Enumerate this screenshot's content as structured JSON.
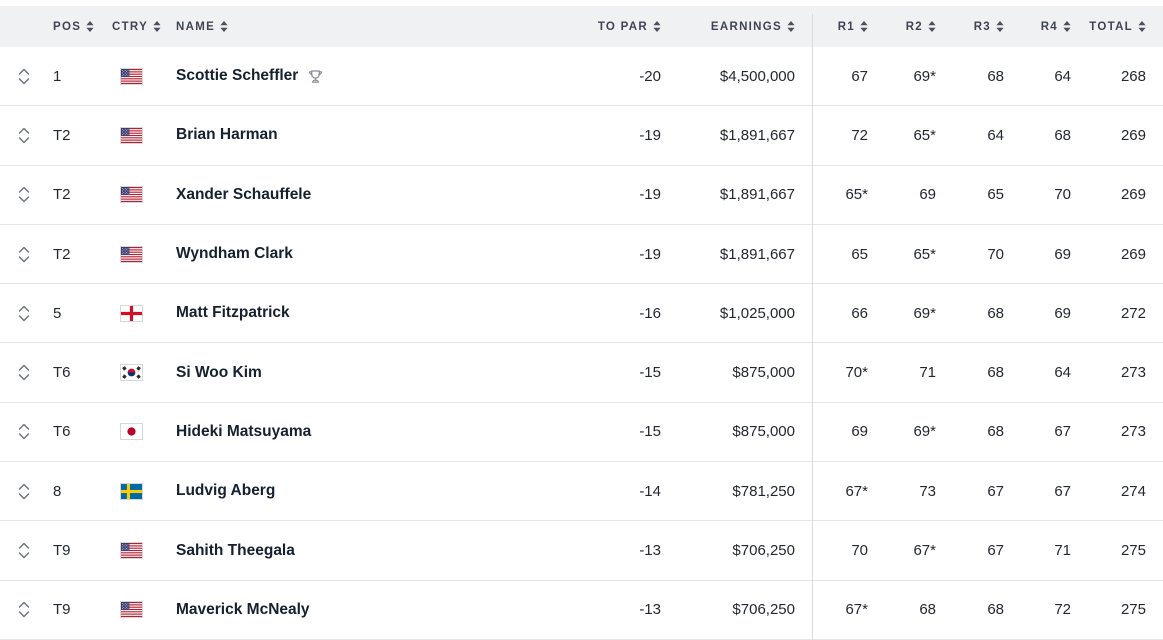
{
  "table": {
    "columns": [
      {
        "key": "pos",
        "label": "POS"
      },
      {
        "key": "country",
        "label": "CTRY"
      },
      {
        "key": "name",
        "label": "NAME"
      },
      {
        "key": "to_par",
        "label": "TO PAR"
      },
      {
        "key": "earnings",
        "label": "EARNINGS"
      },
      {
        "key": "r1",
        "label": "R1"
      },
      {
        "key": "r2",
        "label": "R2"
      },
      {
        "key": "r3",
        "label": "R3"
      },
      {
        "key": "r4",
        "label": "R4"
      },
      {
        "key": "total",
        "label": "TOTAL"
      }
    ],
    "rows": [
      {
        "pos": "1",
        "country": "USA",
        "name": "Scottie Scheffler",
        "winner": true,
        "to_par": "-20",
        "earnings": "$4,500,000",
        "r1": "67",
        "r2": "69*",
        "r3": "68",
        "r4": "64",
        "total": "268"
      },
      {
        "pos": "T2",
        "country": "USA",
        "name": "Brian Harman",
        "winner": false,
        "to_par": "-19",
        "earnings": "$1,891,667",
        "r1": "72",
        "r2": "65*",
        "r3": "64",
        "r4": "68",
        "total": "269"
      },
      {
        "pos": "T2",
        "country": "USA",
        "name": "Xander Schauffele",
        "winner": false,
        "to_par": "-19",
        "earnings": "$1,891,667",
        "r1": "65*",
        "r2": "69",
        "r3": "65",
        "r4": "70",
        "total": "269"
      },
      {
        "pos": "T2",
        "country": "USA",
        "name": "Wyndham Clark",
        "winner": false,
        "to_par": "-19",
        "earnings": "$1,891,667",
        "r1": "65",
        "r2": "65*",
        "r3": "70",
        "r4": "69",
        "total": "269"
      },
      {
        "pos": "5",
        "country": "ENG",
        "name": "Matt Fitzpatrick",
        "winner": false,
        "to_par": "-16",
        "earnings": "$1,025,000",
        "r1": "66",
        "r2": "69*",
        "r3": "68",
        "r4": "69",
        "total": "272"
      },
      {
        "pos": "T6",
        "country": "KOR",
        "name": "Si Woo Kim",
        "winner": false,
        "to_par": "-15",
        "earnings": "$875,000",
        "r1": "70*",
        "r2": "71",
        "r3": "68",
        "r4": "64",
        "total": "273"
      },
      {
        "pos": "T6",
        "country": "JPN",
        "name": "Hideki Matsuyama",
        "winner": false,
        "to_par": "-15",
        "earnings": "$875,000",
        "r1": "69",
        "r2": "69*",
        "r3": "68",
        "r4": "67",
        "total": "273"
      },
      {
        "pos": "8",
        "country": "SWE",
        "name": "Ludvig Aberg",
        "winner": false,
        "to_par": "-14",
        "earnings": "$781,250",
        "r1": "67*",
        "r2": "73",
        "r3": "67",
        "r4": "67",
        "total": "274"
      },
      {
        "pos": "T9",
        "country": "USA",
        "name": "Sahith Theegala",
        "winner": false,
        "to_par": "-13",
        "earnings": "$706,250",
        "r1": "70",
        "r2": "67*",
        "r3": "67",
        "r4": "71",
        "total": "275"
      },
      {
        "pos": "T9",
        "country": "USA",
        "name": "Maverick McNealy",
        "winner": false,
        "to_par": "-13",
        "earnings": "$706,250",
        "r1": "67*",
        "r2": "68",
        "r3": "68",
        "r4": "72",
        "total": "275"
      }
    ]
  },
  "icons": {
    "sort": "sort-arrows-icon",
    "expand": "up-down-chevron-icon",
    "winner": "trophy-icon"
  },
  "colors": {
    "header_bg": "#f0f1f2",
    "header_text": "#3e4552",
    "name_text": "#16202f",
    "score_text": "#23272f",
    "row_border": "#e5e5e7",
    "section_divider": "#d9dadc",
    "icon_gray": "#70777f"
  }
}
